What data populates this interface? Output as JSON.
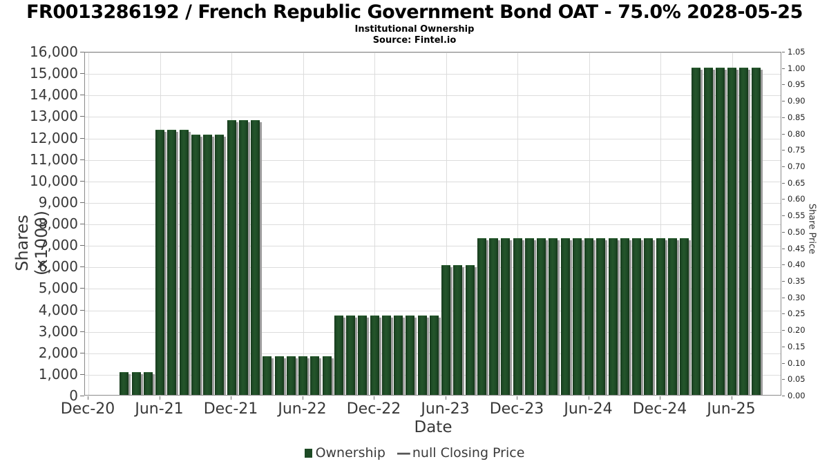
{
  "header": {
    "title": "FR0013286192 / French Republic Government Bond OAT - 75.0% 2028-05-25",
    "subtitle": "Institutional Ownership",
    "source": "Source: Fintel.io"
  },
  "chart_data": {
    "type": "bar",
    "title": "FR0013286192 / French Republic Government Bond OAT - 75.0% 2028-05-25",
    "subtitle": "Institutional Ownership",
    "source": "Source: Fintel.io",
    "xlabel": "Date",
    "ylabel_left": "Shares (x1000)",
    "ylabel_right": "Share Price",
    "ylim_left": [
      0,
      16000
    ],
    "ylim_right": [
      0,
      1.05
    ],
    "grid": true,
    "legend_position": "bottom-center",
    "bar_color": "#1d4a25",
    "shadow_color": "#9c9c9c",
    "x_tick_labels": [
      "Dec-20",
      "Jun-21",
      "Dec-21",
      "Jun-22",
      "Dec-22",
      "Jun-23",
      "Dec-23",
      "Jun-24",
      "Dec-24",
      "Jun-25"
    ],
    "y_ticks_left": [
      {
        "v": 0,
        "label": "0"
      },
      {
        "v": 1000,
        "label": "1,000"
      },
      {
        "v": 2000,
        "label": "2,000"
      },
      {
        "v": 3000,
        "label": "3,000"
      },
      {
        "v": 4000,
        "label": "4,000"
      },
      {
        "v": 5000,
        "label": "5,000"
      },
      {
        "v": 6000,
        "label": "6,000"
      },
      {
        "v": 7000,
        "label": "7,000"
      },
      {
        "v": 8000,
        "label": "8,000"
      },
      {
        "v": 9000,
        "label": "9,000"
      },
      {
        "v": 10000,
        "label": "10,000"
      },
      {
        "v": 11000,
        "label": "11,000"
      },
      {
        "v": 12000,
        "label": "12,000"
      },
      {
        "v": 13000,
        "label": "13,000"
      },
      {
        "v": 14000,
        "label": "14,000"
      },
      {
        "v": 15000,
        "label": "15,000"
      },
      {
        "v": 16000,
        "label": "16,000"
      }
    ],
    "y_ticks_right": [
      {
        "v": 0.0,
        "label": "0.00"
      },
      {
        "v": 0.05,
        "label": "0.05"
      },
      {
        "v": 0.1,
        "label": "0.10"
      },
      {
        "v": 0.15,
        "label": "0.15"
      },
      {
        "v": 0.2,
        "label": "0.20"
      },
      {
        "v": 0.25,
        "label": "0.25"
      },
      {
        "v": 0.3,
        "label": "0.30"
      },
      {
        "v": 0.35,
        "label": "0.35"
      },
      {
        "v": 0.4,
        "label": "0.40"
      },
      {
        "v": 0.45,
        "label": "0.45"
      },
      {
        "v": 0.5,
        "label": "0.50"
      },
      {
        "v": 0.55,
        "label": "0.55"
      },
      {
        "v": 0.6,
        "label": "0.60"
      },
      {
        "v": 0.65,
        "label": "0.65"
      },
      {
        "v": 0.7,
        "label": "0.70"
      },
      {
        "v": 0.75,
        "label": "0.75"
      },
      {
        "v": 0.8,
        "label": "0.80"
      },
      {
        "v": 0.85,
        "label": "0.85"
      },
      {
        "v": 0.9,
        "label": "0.90"
      },
      {
        "v": 0.95,
        "label": "0.95"
      },
      {
        "v": 1.0,
        "label": "1.00"
      },
      {
        "v": 1.05,
        "label": "1.05"
      }
    ],
    "series": [
      {
        "name": "Ownership",
        "unit": "shares (x1000)",
        "points": [
          {
            "date": "2021-03",
            "value": 1130
          },
          {
            "date": "2021-04",
            "value": 1130
          },
          {
            "date": "2021-05",
            "value": 1130
          },
          {
            "date": "2021-06",
            "value": 12400
          },
          {
            "date": "2021-07",
            "value": 12400
          },
          {
            "date": "2021-08",
            "value": 12400
          },
          {
            "date": "2021-09",
            "value": 12170
          },
          {
            "date": "2021-10",
            "value": 12170
          },
          {
            "date": "2021-11",
            "value": 12170
          },
          {
            "date": "2021-12",
            "value": 12850
          },
          {
            "date": "2022-01",
            "value": 12850
          },
          {
            "date": "2022-02",
            "value": 12850
          },
          {
            "date": "2022-03",
            "value": 1870
          },
          {
            "date": "2022-04",
            "value": 1870
          },
          {
            "date": "2022-05",
            "value": 1870
          },
          {
            "date": "2022-06",
            "value": 1870
          },
          {
            "date": "2022-07",
            "value": 1870
          },
          {
            "date": "2022-08",
            "value": 1870
          },
          {
            "date": "2022-09",
            "value": 3770
          },
          {
            "date": "2022-10",
            "value": 3770
          },
          {
            "date": "2022-11",
            "value": 3770
          },
          {
            "date": "2022-12",
            "value": 3770
          },
          {
            "date": "2023-01",
            "value": 3770
          },
          {
            "date": "2023-02",
            "value": 3770
          },
          {
            "date": "2023-03",
            "value": 3770
          },
          {
            "date": "2023-04",
            "value": 3770
          },
          {
            "date": "2023-05",
            "value": 3770
          },
          {
            "date": "2023-06",
            "value": 6100
          },
          {
            "date": "2023-07",
            "value": 6100
          },
          {
            "date": "2023-08",
            "value": 6100
          },
          {
            "date": "2023-09",
            "value": 7350
          },
          {
            "date": "2023-10",
            "value": 7350
          },
          {
            "date": "2023-11",
            "value": 7350
          },
          {
            "date": "2023-12",
            "value": 7350
          },
          {
            "date": "2024-01",
            "value": 7350
          },
          {
            "date": "2024-02",
            "value": 7350
          },
          {
            "date": "2024-03",
            "value": 7350
          },
          {
            "date": "2024-04",
            "value": 7350
          },
          {
            "date": "2024-05",
            "value": 7350
          },
          {
            "date": "2024-06",
            "value": 7350
          },
          {
            "date": "2024-07",
            "value": 7350
          },
          {
            "date": "2024-08",
            "value": 7350
          },
          {
            "date": "2024-09",
            "value": 7350
          },
          {
            "date": "2024-10",
            "value": 7350
          },
          {
            "date": "2024-11",
            "value": 7350
          },
          {
            "date": "2024-12",
            "value": 7350
          },
          {
            "date": "2025-01",
            "value": 7350
          },
          {
            "date": "2025-02",
            "value": 7350
          },
          {
            "date": "2025-03",
            "value": 15300
          },
          {
            "date": "2025-04",
            "value": 15300
          },
          {
            "date": "2025-05",
            "value": 15300
          },
          {
            "date": "2025-06",
            "value": 15300
          },
          {
            "date": "2025-07",
            "value": 15300
          },
          {
            "date": "2025-08",
            "value": 15300
          }
        ]
      },
      {
        "name": "null Closing Price",
        "points": []
      }
    ],
    "legend": [
      {
        "label": "Ownership",
        "marker": "square",
        "color": "#1d4a25"
      },
      {
        "label": "null Closing Price",
        "marker": "dash",
        "color": "#555555",
        "dash_glyph": "—"
      }
    ]
  }
}
